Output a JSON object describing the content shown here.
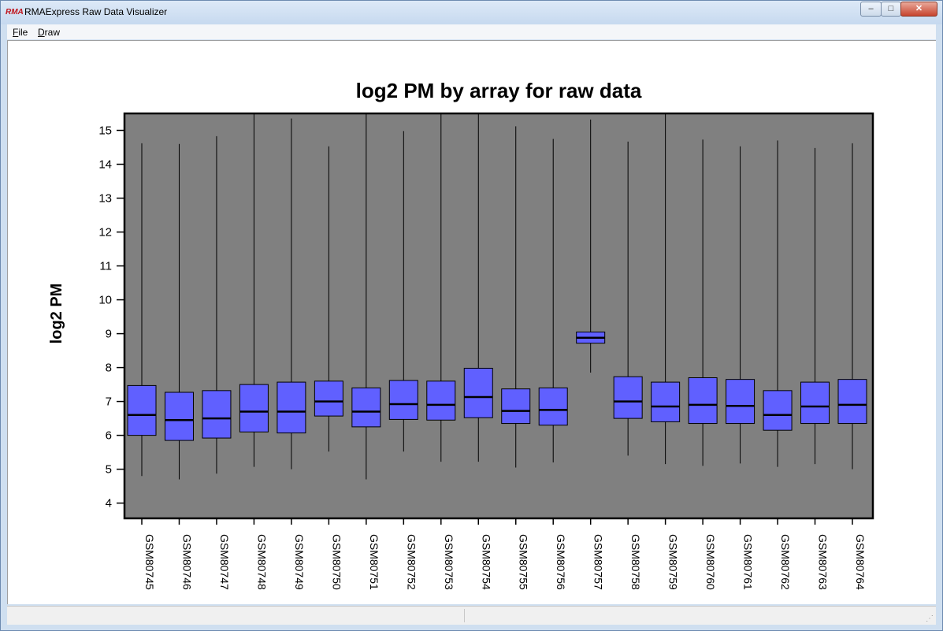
{
  "window": {
    "title": "RMAExpress Raw Data Visualizer",
    "icon": "RMA",
    "buttons": {
      "minimize": "–",
      "maximize": "□",
      "close": "✕"
    }
  },
  "menu": [
    "File",
    "Draw"
  ],
  "chart_data": {
    "type": "box",
    "title": "log2 PM by array for raw data",
    "ylabel": "log2 PM",
    "xlabel": "",
    "ylim": [
      3.55,
      15.5
    ],
    "yticks": [
      4,
      5,
      6,
      7,
      8,
      9,
      10,
      11,
      12,
      13,
      14,
      15
    ],
    "grid": false,
    "plot_background": "#808080",
    "box_color": "#6060ff",
    "categories": [
      "GSM80745",
      "GSM80746",
      "GSM80747",
      "GSM80748",
      "GSM80749",
      "GSM80750",
      "GSM80751",
      "GSM80752",
      "GSM80753",
      "GSM80754",
      "GSM80755",
      "GSM80756",
      "GSM80757",
      "GSM80758",
      "GSM80759",
      "GSM80760",
      "GSM80761",
      "GSM80762",
      "GSM80763",
      "GSM80764"
    ],
    "boxes": [
      {
        "min": 4.8,
        "q1": 6.0,
        "median": 6.6,
        "q3": 7.47,
        "max": 14.62
      },
      {
        "min": 4.7,
        "q1": 5.85,
        "median": 6.45,
        "q3": 7.27,
        "max": 14.6
      },
      {
        "min": 4.87,
        "q1": 5.92,
        "median": 6.5,
        "q3": 7.32,
        "max": 14.83
      },
      {
        "min": 5.07,
        "q1": 6.1,
        "median": 6.7,
        "q3": 7.5,
        "max": 15.5
      },
      {
        "min": 5.0,
        "q1": 6.07,
        "median": 6.7,
        "q3": 7.57,
        "max": 15.35
      },
      {
        "min": 5.52,
        "q1": 6.57,
        "median": 7.0,
        "q3": 7.6,
        "max": 14.53
      },
      {
        "min": 4.7,
        "q1": 6.25,
        "median": 6.7,
        "q3": 7.4,
        "max": 15.5
      },
      {
        "min": 5.52,
        "q1": 6.47,
        "median": 6.92,
        "q3": 7.62,
        "max": 14.98
      },
      {
        "min": 5.22,
        "q1": 6.45,
        "median": 6.9,
        "q3": 7.6,
        "max": 15.5
      },
      {
        "min": 5.22,
        "q1": 6.52,
        "median": 7.13,
        "q3": 7.98,
        "max": 15.5
      },
      {
        "min": 5.05,
        "q1": 6.35,
        "median": 6.72,
        "q3": 7.37,
        "max": 15.12
      },
      {
        "min": 5.2,
        "q1": 6.3,
        "median": 6.75,
        "q3": 7.4,
        "max": 14.75
      },
      {
        "min": 7.85,
        "q1": 8.72,
        "median": 8.88,
        "q3": 9.05,
        "max": 15.32
      },
      {
        "min": 5.4,
        "q1": 6.5,
        "median": 7.0,
        "q3": 7.73,
        "max": 14.67
      },
      {
        "min": 5.15,
        "q1": 6.4,
        "median": 6.85,
        "q3": 7.57,
        "max": 15.5
      },
      {
        "min": 5.1,
        "q1": 6.35,
        "median": 6.9,
        "q3": 7.7,
        "max": 14.73
      },
      {
        "min": 5.17,
        "q1": 6.35,
        "median": 6.87,
        "q3": 7.65,
        "max": 14.53
      },
      {
        "min": 5.07,
        "q1": 6.15,
        "median": 6.6,
        "q3": 7.32,
        "max": 14.7
      },
      {
        "min": 5.15,
        "q1": 6.35,
        "median": 6.85,
        "q3": 7.57,
        "max": 14.48
      },
      {
        "min": 5.0,
        "q1": 6.35,
        "median": 6.9,
        "q3": 7.65,
        "max": 14.62
      }
    ]
  }
}
